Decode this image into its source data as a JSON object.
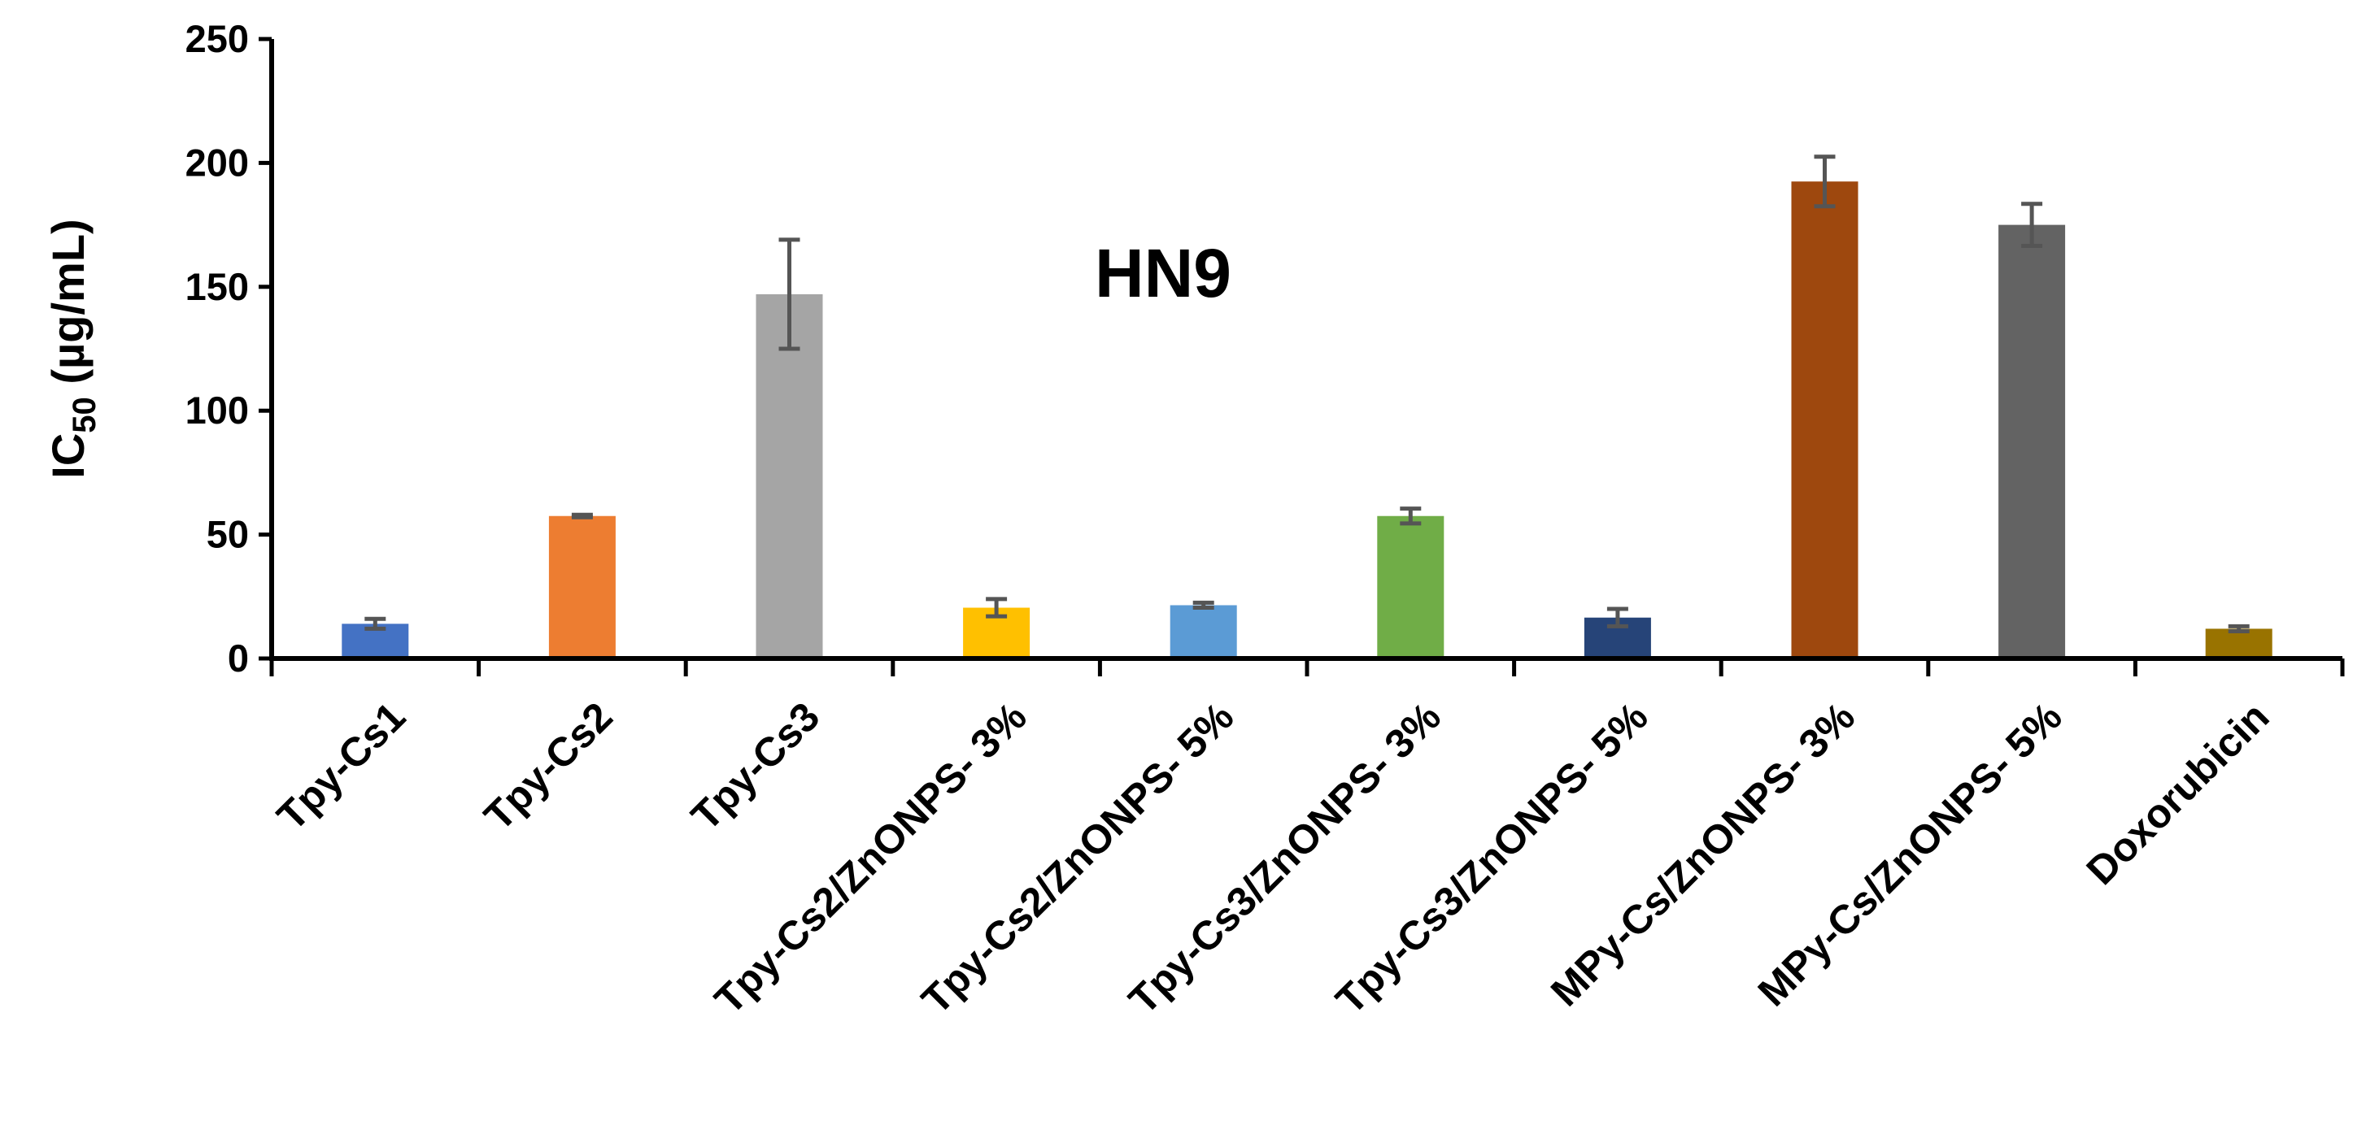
{
  "chart_data": {
    "type": "bar",
    "title": "HN9",
    "ylabel_main": "IC",
    "ylabel_sub": "50",
    "ylabel_unit": " (µg/mL)",
    "xlabel": "",
    "ylim": [
      0,
      250
    ],
    "yticks": [
      0,
      50,
      100,
      150,
      200,
      250
    ],
    "yticks_text": [
      "0",
      "50",
      "100",
      "150",
      "200",
      "250"
    ],
    "grid": false,
    "legend": "none",
    "categories": [
      "Tpy-Cs1",
      "Tpy-Cs2",
      "Tpy-Cs3",
      "Tpy-Cs2/ZnONPS- 3%",
      "Tpy-Cs2/ZnONPS- 5%",
      "Tpy-Cs3/ZnONPS- 3%",
      "Tpy-Cs3/ZnONPS- 5%",
      "MPy-Cs/ZnONPS- 3%",
      "MPy-Cs/ZnONPS- 5%",
      "Doxorubicin"
    ],
    "values": [
      14,
      57.5,
      147,
      20.5,
      21.5,
      57.5,
      16.5,
      192.5,
      175,
      12
    ],
    "errors": [
      2,
      0.5,
      22,
      3.5,
      1,
      3,
      3.5,
      10,
      8.5,
      1
    ],
    "colors": [
      "#4472c4",
      "#ed7d31",
      "#a5a5a5",
      "#ffc000",
      "#5b9bd5",
      "#70ad47",
      "#264478",
      "#9e480e",
      "#636363",
      "#997300"
    ],
    "error_color": "#555555"
  }
}
